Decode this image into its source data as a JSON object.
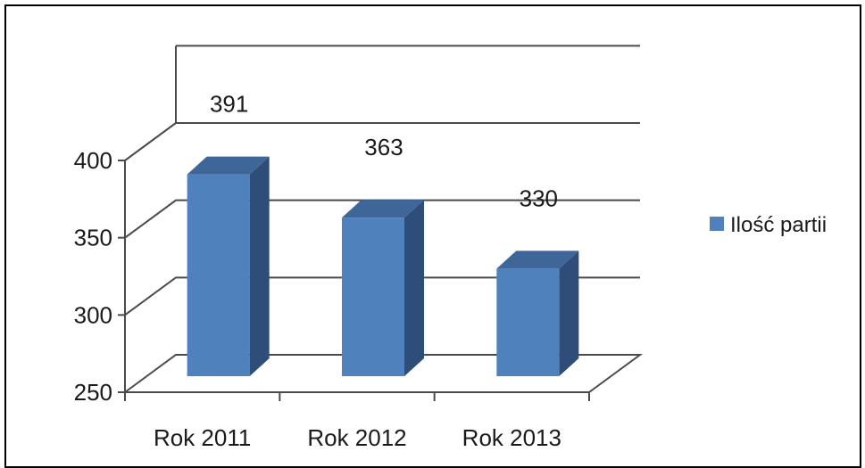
{
  "chart_data": {
    "type": "bar",
    "style": "3d-column",
    "categories": [
      "Rok 2011",
      "Rok 2012",
      "Rok 2013"
    ],
    "series": [
      {
        "name": "Ilość partii",
        "values": [
          391,
          363,
          330
        ],
        "color": "#4F81BD"
      }
    ],
    "ylim": [
      250,
      400
    ],
    "yticks": [
      250,
      300,
      350,
      400
    ],
    "grid": true,
    "legend_position": "right",
    "data_labels": [
      "391",
      "363",
      "330"
    ]
  },
  "colors": {
    "bar_front": "#4F81BD",
    "bar_side": "#2E4D78",
    "bar_top": "#3E6699",
    "grid": "#4a4a4a"
  }
}
